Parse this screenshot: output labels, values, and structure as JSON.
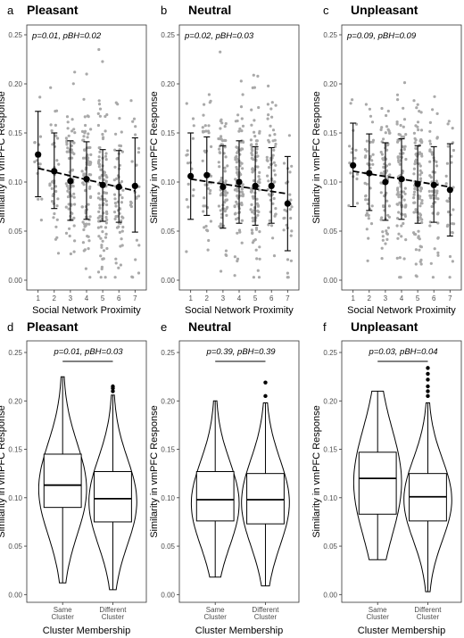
{
  "chart_data": [
    {
      "type": "scatter",
      "letter": "a",
      "title": "Pleasant",
      "annotation": "p=0.01, pBH=0.02",
      "xlabel": "Social Network Proximity",
      "ylabel": "Similarity in vmPFC Response",
      "categories": [
        "1",
        "2",
        "3",
        "4",
        "5",
        "6",
        "7"
      ],
      "yticks": [
        "0.00",
        "0.05",
        "0.10",
        "0.15",
        "0.20",
        "0.25"
      ],
      "ylim": [
        -0.01,
        0.26
      ],
      "means": [
        0.128,
        0.111,
        0.101,
        0.103,
        0.097,
        0.095,
        0.096
      ],
      "error_low": [
        0.085,
        0.073,
        0.061,
        0.062,
        0.06,
        0.059,
        0.049
      ],
      "error_high": [
        0.172,
        0.15,
        0.142,
        0.141,
        0.133,
        0.132,
        0.145
      ],
      "point_counts": [
        16,
        40,
        70,
        90,
        100,
        60,
        28
      ],
      "trend": [
        0.114,
        0.091
      ]
    },
    {
      "type": "scatter",
      "letter": "b",
      "title": "Neutral",
      "annotation": "p=0.02, pBH=0.03",
      "xlabel": "Social Network Proximity",
      "ylabel": "Similarity in vmPFC Response",
      "categories": [
        "1",
        "2",
        "3",
        "4",
        "5",
        "6",
        "7"
      ],
      "yticks": [
        "0.00",
        "0.05",
        "0.10",
        "0.15",
        "0.20",
        "0.25"
      ],
      "ylim": [
        -0.01,
        0.26
      ],
      "means": [
        0.106,
        0.107,
        0.095,
        0.1,
        0.096,
        0.096,
        0.078
      ],
      "error_low": [
        0.062,
        0.066,
        0.053,
        0.058,
        0.056,
        0.058,
        0.03
      ],
      "error_high": [
        0.15,
        0.146,
        0.137,
        0.142,
        0.136,
        0.135,
        0.126
      ],
      "point_counts": [
        16,
        40,
        70,
        90,
        100,
        60,
        28
      ],
      "trend": [
        0.103,
        0.088
      ]
    },
    {
      "type": "scatter",
      "letter": "c",
      "title": "Unpleasant",
      "annotation": "p=0.09, pBH=0.09",
      "xlabel": "Social Network Proximity",
      "ylabel": "Similarity in vmPFC Response",
      "categories": [
        "1",
        "2",
        "3",
        "4",
        "5",
        "6",
        "7"
      ],
      "yticks": [
        "0.00",
        "0.05",
        "0.10",
        "0.15",
        "0.20",
        "0.25"
      ],
      "ylim": [
        -0.01,
        0.26
      ],
      "means": [
        0.117,
        0.109,
        0.1,
        0.103,
        0.098,
        0.097,
        0.092
      ],
      "error_low": [
        0.075,
        0.071,
        0.061,
        0.062,
        0.058,
        0.059,
        0.045
      ],
      "error_high": [
        0.16,
        0.149,
        0.14,
        0.144,
        0.137,
        0.136,
        0.139
      ],
      "point_counts": [
        16,
        40,
        70,
        90,
        100,
        60,
        28
      ],
      "trend": [
        0.111,
        0.095
      ]
    },
    {
      "type": "violin",
      "letter": "d",
      "title": "Pleasant",
      "annotation": "p=0.01, pBH=0.03",
      "xlabel": "Cluster Membership",
      "ylabel": "Similarity in vmPFC Response",
      "categories": [
        "Same Cluster",
        "Different Cluster"
      ],
      "category_lines": [
        [
          "Same",
          "Cluster"
        ],
        [
          "Different",
          "Cluster"
        ]
      ],
      "yticks": [
        "0.00",
        "0.05",
        "0.10",
        "0.15",
        "0.20",
        "0.25"
      ],
      "ylim": [
        -0.008,
        0.262
      ],
      "groups": [
        {
          "min": 0.012,
          "q1": 0.09,
          "median": 0.113,
          "q3": 0.145,
          "max": 0.225,
          "outliers": []
        },
        {
          "min": 0.005,
          "q1": 0.075,
          "median": 0.099,
          "q3": 0.127,
          "max": 0.206,
          "outliers": [
            0.21,
            0.213,
            0.215
          ]
        }
      ]
    },
    {
      "type": "violin",
      "letter": "e",
      "title": "Neutral",
      "annotation": "p=0.39, pBH=0.39",
      "xlabel": "Cluster Membership",
      "ylabel": "Similarity in vmPFC Response",
      "categories": [
        "Same Cluster",
        "Different Cluster"
      ],
      "category_lines": [
        [
          "Same",
          "Cluster"
        ],
        [
          "Different",
          "Cluster"
        ]
      ],
      "yticks": [
        "0.00",
        "0.05",
        "0.10",
        "0.15",
        "0.20",
        "0.25"
      ],
      "ylim": [
        -0.008,
        0.262
      ],
      "groups": [
        {
          "min": 0.018,
          "q1": 0.076,
          "median": 0.098,
          "q3": 0.127,
          "max": 0.2,
          "outliers": []
        },
        {
          "min": 0.009,
          "q1": 0.073,
          "median": 0.098,
          "q3": 0.125,
          "max": 0.198,
          "outliers": [
            0.205,
            0.219
          ]
        }
      ]
    },
    {
      "type": "violin",
      "letter": "f",
      "title": "Unpleasant",
      "annotation": "p=0.03, pBH=0.04",
      "xlabel": "Cluster Membership",
      "ylabel": "Similarity in vmPFC Response",
      "categories": [
        "Same Cluster",
        "Different Cluster"
      ],
      "category_lines": [
        [
          "Same",
          "Cluster"
        ],
        [
          "Different",
          "Cluster"
        ]
      ],
      "yticks": [
        "0.00",
        "0.05",
        "0.10",
        "0.15",
        "0.20",
        "0.25"
      ],
      "ylim": [
        -0.008,
        0.262
      ],
      "groups": [
        {
          "min": 0.036,
          "q1": 0.083,
          "median": 0.12,
          "q3": 0.147,
          "max": 0.21,
          "outliers": []
        },
        {
          "min": 0.003,
          "q1": 0.076,
          "median": 0.101,
          "q3": 0.125,
          "max": 0.198,
          "outliers": [
            0.205,
            0.21,
            0.215,
            0.222,
            0.228,
            0.234
          ]
        }
      ]
    }
  ],
  "colors": {
    "points": "#a9a9a9",
    "ink": "#000000",
    "tick_text": "#4d4d4d"
  }
}
